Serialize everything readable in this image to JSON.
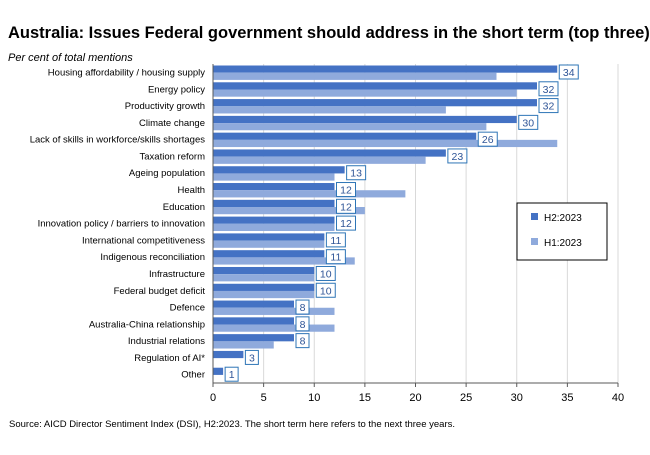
{
  "chart_data": {
    "type": "bar",
    "orientation": "horizontal",
    "title": "Australia: Issues Federal government should address in the short term (top three)",
    "subtitle": "Per cent of total mentions",
    "source": "Source: AICD Director Sentiment Index (DSI), H2:2023.  The short term here refers to the next three years.",
    "categories": [
      "Housing affordability / housing supply",
      "Energy policy",
      "Productivity growth",
      "Climate change",
      "Lack of skills in workforce/skills shortages",
      "Taxation reform",
      "Ageing population",
      "Health",
      "Education",
      "Innovation policy / barriers to innovation",
      "International competitiveness",
      "Indigenous reconciliation",
      "Infrastructure",
      "Federal budget deficit",
      "Defence",
      "Australia-China relationship",
      "Industrial relations",
      "Regulation of AI*",
      "Other"
    ],
    "series": [
      {
        "name": "H2:2023",
        "color": "#4472C4",
        "values": [
          34,
          32,
          32,
          30,
          26,
          23,
          13,
          12,
          12,
          12,
          11,
          11,
          10,
          10,
          8,
          8,
          8,
          3,
          1
        ]
      },
      {
        "name": "H1:2023",
        "color": "#8FAADC",
        "values": [
          28,
          30,
          23,
          27,
          34,
          21,
          12,
          19,
          15,
          12,
          11,
          14,
          10,
          10,
          12,
          12,
          6,
          null,
          null
        ]
      }
    ],
    "data_labels_series": "H2:2023",
    "xlim": [
      0,
      40
    ],
    "xticks": [
      0,
      5,
      10,
      15,
      20,
      25,
      30,
      35,
      40
    ],
    "grid": true,
    "legend_position": "right"
  }
}
